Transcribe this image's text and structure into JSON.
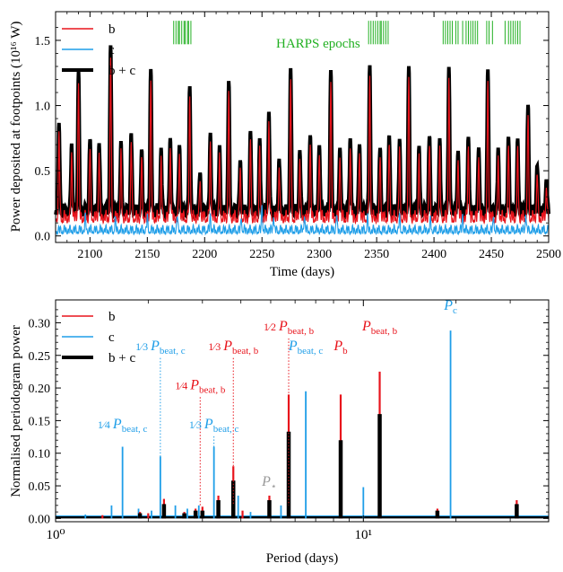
{
  "colors": {
    "b": "#e8141c",
    "c": "#1f9ee8",
    "bc": "#000000",
    "harps": "#22b022",
    "pstar": "#9a9a9a"
  },
  "chart_data": [
    {
      "type": "line",
      "ylabel": "Power deposited at footpoints (10¹⁶ W)",
      "xlabel": "Time (days)",
      "xlim": [
        2070,
        2500
      ],
      "ylim": [
        -0.05,
        1.72
      ],
      "xticks": [
        "2100",
        "2150",
        "2200",
        "2250",
        "2300",
        "2350",
        "2400",
        "2450",
        "2500"
      ],
      "yticks": [
        "0.0",
        "0.5",
        "1.0",
        "1.5"
      ],
      "legend_position": "upper-left",
      "legend": [
        {
          "key": "b",
          "label": "b"
        },
        {
          "key": "c",
          "label": "c"
        },
        {
          "key": "bc",
          "label": "b + c"
        }
      ],
      "annotation": "HARPS epochs",
      "harps_epochs": [
        2173,
        2175,
        2177,
        2178,
        2180,
        2182,
        2183,
        2185,
        2186,
        2188,
        2343,
        2345,
        2347,
        2349,
        2351,
        2353,
        2354,
        2356,
        2358,
        2360,
        2408,
        2410,
        2412,
        2414,
        2416,
        2419,
        2421,
        2425,
        2428,
        2430,
        2432,
        2434,
        2436,
        2438,
        2446,
        2448,
        2451,
        2462,
        2465,
        2467,
        2469,
        2471,
        2473,
        2475
      ],
      "b_peaks": [
        {
          "t": 2073,
          "h": 0.63
        },
        {
          "t": 2084,
          "h": 0.5
        },
        {
          "t": 2090,
          "h": 1.07
        },
        {
          "t": 2100,
          "h": 0.55
        },
        {
          "t": 2108,
          "h": 0.52
        },
        {
          "t": 2118,
          "h": 1.25
        },
        {
          "t": 2127,
          "h": 0.48
        },
        {
          "t": 2136,
          "h": 0.57
        },
        {
          "t": 2145,
          "h": 0.43
        },
        {
          "t": 2153,
          "h": 1.07
        },
        {
          "t": 2162,
          "h": 0.45
        },
        {
          "t": 2170,
          "h": 0.57
        },
        {
          "t": 2178,
          "h": 0.49
        },
        {
          "t": 2187,
          "h": 0.92
        },
        {
          "t": 2196,
          "h": 0.3
        },
        {
          "t": 2205,
          "h": 0.57
        },
        {
          "t": 2213,
          "h": 0.45
        },
        {
          "t": 2221,
          "h": 0.95
        },
        {
          "t": 2231,
          "h": 0.35
        },
        {
          "t": 2240,
          "h": 0.57
        },
        {
          "t": 2248,
          "h": 0.5
        },
        {
          "t": 2256,
          "h": 0.73
        },
        {
          "t": 2265,
          "h": 0.4
        },
        {
          "t": 2275,
          "h": 1.07
        },
        {
          "t": 2283,
          "h": 0.45
        },
        {
          "t": 2292,
          "h": 0.57
        },
        {
          "t": 2300,
          "h": 0.52
        },
        {
          "t": 2310,
          "h": 1.07
        },
        {
          "t": 2318,
          "h": 0.5
        },
        {
          "t": 2327,
          "h": 0.57
        },
        {
          "t": 2335,
          "h": 0.5
        },
        {
          "t": 2344,
          "h": 1.07
        },
        {
          "t": 2353,
          "h": 0.49
        },
        {
          "t": 2361,
          "h": 0.57
        },
        {
          "t": 2370,
          "h": 0.5
        },
        {
          "t": 2378,
          "h": 1.07
        },
        {
          "t": 2387,
          "h": 0.45
        },
        {
          "t": 2396,
          "h": 0.57
        },
        {
          "t": 2405,
          "h": 0.5
        },
        {
          "t": 2413,
          "h": 1.07
        },
        {
          "t": 2421,
          "h": 0.47
        },
        {
          "t": 2430,
          "h": 0.57
        },
        {
          "t": 2439,
          "h": 0.5
        },
        {
          "t": 2447,
          "h": 1.07
        },
        {
          "t": 2456,
          "h": 0.45
        },
        {
          "t": 2465,
          "h": 0.55
        },
        {
          "t": 2473,
          "h": 0.5
        },
        {
          "t": 2482,
          "h": 0.8
        },
        {
          "t": 2490,
          "h": 0.35
        },
        {
          "t": 2498,
          "h": 0.25
        }
      ],
      "c_peaks": [
        {
          "t": 2096,
          "h": 0.1
        },
        {
          "t": 2122,
          "h": 0.08
        },
        {
          "t": 2150,
          "h": 0.1
        },
        {
          "t": 2176,
          "h": 0.12
        },
        {
          "t": 2205,
          "h": 0.12
        },
        {
          "t": 2232,
          "h": 0.1
        },
        {
          "t": 2250,
          "h": 0.2
        },
        {
          "t": 2260,
          "h": 0.12
        },
        {
          "t": 2287,
          "h": 0.12
        },
        {
          "t": 2315,
          "h": 0.12
        },
        {
          "t": 2342,
          "h": 0.1
        },
        {
          "t": 2370,
          "h": 0.1
        },
        {
          "t": 2397,
          "h": 0.08
        },
        {
          "t": 2425,
          "h": 0.12
        },
        {
          "t": 2452,
          "h": 0.12
        },
        {
          "t": 2480,
          "h": 0.14
        }
      ]
    },
    {
      "type": "line",
      "xscale": "log",
      "ylabel": "Normalised periodogram power",
      "xlabel": "Period (days)",
      "xlim": [
        1.0,
        40.0
      ],
      "ylim": [
        -0.005,
        0.335
      ],
      "xticks": [
        "10⁰",
        "10¹"
      ],
      "yticks": [
        "0.00",
        "0.05",
        "0.10",
        "0.15",
        "0.20",
        "0.25",
        "0.30"
      ],
      "legend_position": "upper-left",
      "legend": [
        {
          "key": "b",
          "label": "b"
        },
        {
          "key": "c",
          "label": "c"
        },
        {
          "key": "bc",
          "label": "b + c"
        }
      ],
      "c_lines": [
        {
          "p": 1.25,
          "h": 0.006
        },
        {
          "p": 1.52,
          "h": 0.02
        },
        {
          "p": 1.65,
          "h": 0.11
        },
        {
          "p": 1.86,
          "h": 0.015
        },
        {
          "p": 2.05,
          "h": 0.012
        },
        {
          "p": 2.19,
          "h": 0.095
        },
        {
          "p": 2.45,
          "h": 0.02
        },
        {
          "p": 2.68,
          "h": 0.015
        },
        {
          "p": 2.92,
          "h": 0.02
        },
        {
          "p": 3.27,
          "h": 0.11
        },
        {
          "p": 3.92,
          "h": 0.035
        },
        {
          "p": 4.3,
          "h": 0.01
        },
        {
          "p": 5.4,
          "h": 0.02
        },
        {
          "p": 6.5,
          "h": 0.195
        },
        {
          "p": 10.0,
          "h": 0.048
        },
        {
          "p": 19.2,
          "h": 0.288
        }
      ],
      "b_lines": [
        {
          "p": 1.42,
          "h": 0.005
        },
        {
          "p": 1.88,
          "h": 0.01
        },
        {
          "p": 2.0,
          "h": 0.008
        },
        {
          "p": 2.25,
          "h": 0.03
        },
        {
          "p": 2.62,
          "h": 0.01
        },
        {
          "p": 2.85,
          "h": 0.015
        },
        {
          "p": 3.0,
          "h": 0.018
        },
        {
          "p": 3.38,
          "h": 0.035
        },
        {
          "p": 3.78,
          "h": 0.08
        },
        {
          "p": 4.05,
          "h": 0.012
        },
        {
          "p": 4.95,
          "h": 0.035
        },
        {
          "p": 5.72,
          "h": 0.19
        },
        {
          "p": 8.44,
          "h": 0.19
        },
        {
          "p": 11.3,
          "h": 0.225
        },
        {
          "p": 17.4,
          "h": 0.015
        },
        {
          "p": 31.5,
          "h": 0.028
        }
      ],
      "bc_lines": [
        {
          "p": 1.88,
          "h": 0.008
        },
        {
          "p": 2.25,
          "h": 0.022
        },
        {
          "p": 2.62,
          "h": 0.008
        },
        {
          "p": 2.85,
          "h": 0.012
        },
        {
          "p": 3.0,
          "h": 0.012
        },
        {
          "p": 3.38,
          "h": 0.028
        },
        {
          "p": 3.78,
          "h": 0.058
        },
        {
          "p": 4.95,
          "h": 0.028
        },
        {
          "p": 5.72,
          "h": 0.133
        },
        {
          "p": 8.44,
          "h": 0.12
        },
        {
          "p": 11.3,
          "h": 0.16
        },
        {
          "p": 17.4,
          "h": 0.012
        },
        {
          "p": 31.5,
          "h": 0.022
        }
      ],
      "annotations": [
        {
          "text": "¼Pbeat, c",
          "frac": "1/4",
          "sym": "P",
          "sub": "beat, c",
          "color": "c",
          "p": 1.65,
          "ty": 0.138,
          "line": false
        },
        {
          "text": "⅓Pbeat, c",
          "frac": "1/3",
          "sym": "P",
          "sub": "beat, c",
          "color": "c",
          "p": 2.19,
          "ty": 0.258,
          "line": true,
          "ytop": 0.25
        },
        {
          "text": "¼Pbeat, b",
          "frac": "1/4",
          "sym": "P",
          "sub": "beat, b",
          "color": "b",
          "p": 2.95,
          "ty": 0.198,
          "line": true,
          "ytop": 0.19
        },
        {
          "text": "⅓Pbeat, c",
          "frac": "1/3",
          "sym": "P",
          "sub": "beat, c",
          "color": "c",
          "p": 3.27,
          "ty": 0.138,
          "line": true,
          "ytop": 0.13
        },
        {
          "text": "⅓Pbeat, b",
          "frac": "1/3",
          "sym": "P",
          "sub": "beat, b",
          "color": "b",
          "p": 3.78,
          "ty": 0.258,
          "line": true,
          "ytop": 0.25
        },
        {
          "text": "½Pbeat, b",
          "frac": "1/2",
          "sym": "P",
          "sub": "beat, b",
          "color": "b",
          "p": 5.72,
          "ty": 0.288,
          "line": true,
          "ytop": 0.28
        },
        {
          "text": "Pbeat, c",
          "frac": "",
          "sym": "P",
          "sub": "beat, c",
          "color": "c",
          "p": 6.5,
          "ty": 0.258,
          "line": false
        },
        {
          "text": "Pb",
          "frac": "",
          "sym": "P",
          "sub": "b",
          "color": "b",
          "p": 8.44,
          "ty": 0.258,
          "line": false
        },
        {
          "text": "Pbeat, b",
          "frac": "",
          "sym": "P",
          "sub": "beat, b",
          "color": "b",
          "p": 11.3,
          "ty": 0.288,
          "line": false
        },
        {
          "text": "Pc",
          "frac": "",
          "sym": "P",
          "sub": "c",
          "color": "c",
          "p": 19.2,
          "ty": 0.32,
          "line": false
        },
        {
          "text": "P⋆",
          "frac": "",
          "sym": "P",
          "sub": "⋆",
          "color": "pstar",
          "p": 4.95,
          "ty": 0.05,
          "line": false
        }
      ]
    }
  ]
}
